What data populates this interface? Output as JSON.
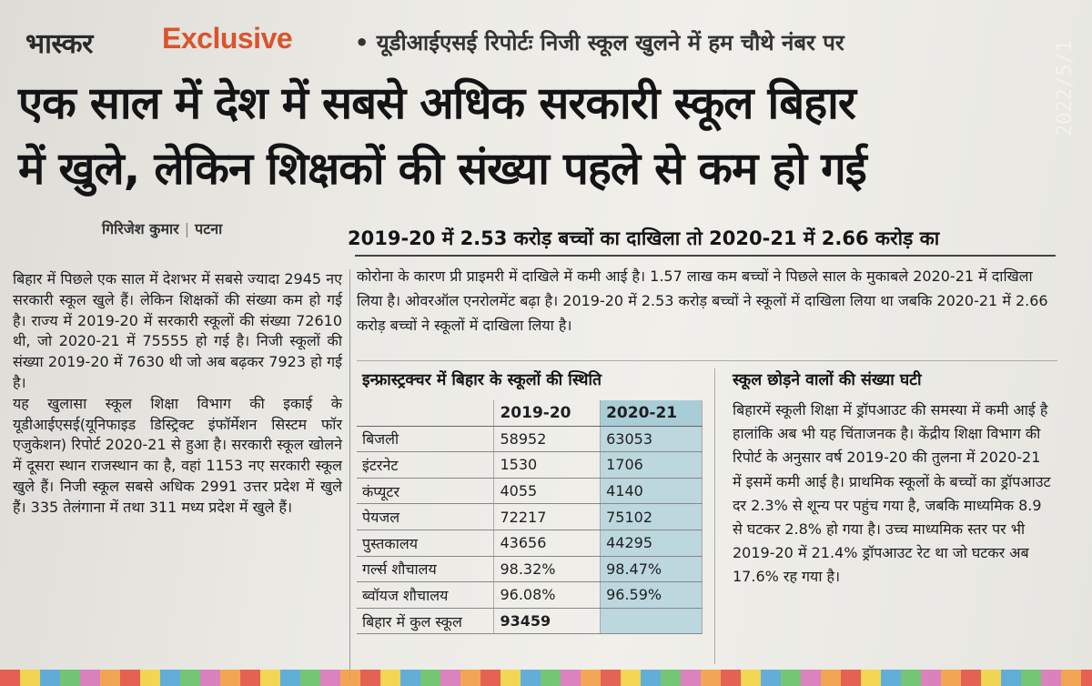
{
  "kicker": {
    "brand": "भास्कर",
    "exclusive": "Exclusive",
    "subtitle": "• यूडीआईएसई रिपोर्टः निजी स्कूल खुलने में हम चौथे नंबर पर"
  },
  "datestamp": "2022/5/1",
  "headline": {
    "line1": "एक साल में देश में सबसे अधिक सरकारी स्कूल बिहार",
    "line2": "में खुले, लेकिन शिक्षकों की संख्या पहले से कम हो गई"
  },
  "byline": {
    "author": "गिरिजेश कुमार",
    "place": "पटना"
  },
  "left_column": {
    "paragraphs": [
      "बिहार में पिछले एक साल में देशभर में सबसे ज्यादा 2945 नए सरकारी स्कूल खुले हैं। लेकिन शिक्षकों की संख्या कम हो गई है। राज्य में 2019-20 में सरकारी स्कूलों की संख्या 72610 थी, जो 2020-21 में 75555 हो गई है। निजी स्कूलों की संख्या 2019-20 में 7630 थी जो अब बढ़कर 7923 हो गई है।",
      "यह खुलासा स्कूल शिक्षा विभाग की इकाई के यूडीआईएसई(यूनिफाइड डिस्ट्रिक्ट इंफॉर्मेशन सिस्टम फॉर एजुकेशन) रिपोर्ट 2020-21 से हुआ है। सरकारी स्कूल खोलने में दूसरा स्थान राजस्थान का है, वहां 1153 नए सरकारी स्कूल खुले हैं। निजी स्कूल सबसे अधिक 2991 उत्तर प्रदेश में खुले हैं। 335 तेलंगाना में तथा 311 मध्य प्रदेश में खुले हैं।"
    ]
  },
  "enrollment": {
    "subhead": "2019-20 में 2.53 करोड़ बच्चों का दाखिला तो 2020-21 में 2.66 करोड़ का",
    "text": "कोरोना के कारण प्री प्राइमरी में दाखिले में कमी आई है। 1.57 लाख कम बच्चों ने पिछले साल के मुकाबले 2020-21 में दाखिला लिया है। ओवरऑल एनरोलमेंट बढ़ा है। 2019-20 में 2.53 करोड़ बच्चों ने स्कूलों में दाखिला लिया था जबकि 2020-21 में 2.66 करोड़ बच्चों ने स्कूलों में दाखिला लिया है।"
  },
  "infra_table": {
    "title": "इन्फ्रास्ट्रक्चर में बिहार के स्कूलों की स्थिति",
    "columns": [
      "",
      "2019-20",
      "2020-21"
    ],
    "rows": [
      [
        "बिजली",
        "58952",
        "63053"
      ],
      [
        "इंटरनेट",
        "1530",
        "1706"
      ],
      [
        "कंप्यूटर",
        "4055",
        "4140"
      ],
      [
        "पेयजल",
        "72217",
        "75102"
      ],
      [
        "पुस्तकालय",
        "43656",
        "44295"
      ],
      [
        "गर्ल्स शौचालय",
        "98.32%",
        "98.47%"
      ],
      [
        "ब्वॉयज शौचालय",
        "96.08%",
        "96.59%"
      ],
      [
        "बिहार में कुल स्कूल",
        "93459",
        ""
      ]
    ]
  },
  "dropout": {
    "title": "स्कूल छोड़ने वालों की संख्या घटी",
    "text": "बिहारमें स्कूली शिक्षा में ड्रॉपआउट की समस्या में कमी आई है हालांकि अब भी यह चिंताजनक है। केंद्रीय शिक्षा विभाग की रिपोर्ट के अनुसार वर्ष 2019-20 की तुलना में 2020-21 में इसमें कमी आई है। प्राथमिक स्कूलों के बच्चों का ड्रॉपआउट दर 2.3% से शून्य पर पहुंच गया है, जबकि माध्यमिक 8.9 से घटकर 2.8% हो गया है। उच्च माध्यमिक स्तर पर भी 2019-20 में 21.4% ड्रॉपआउट रेट था जो घटकर अब 17.6% रह गया है।"
  }
}
